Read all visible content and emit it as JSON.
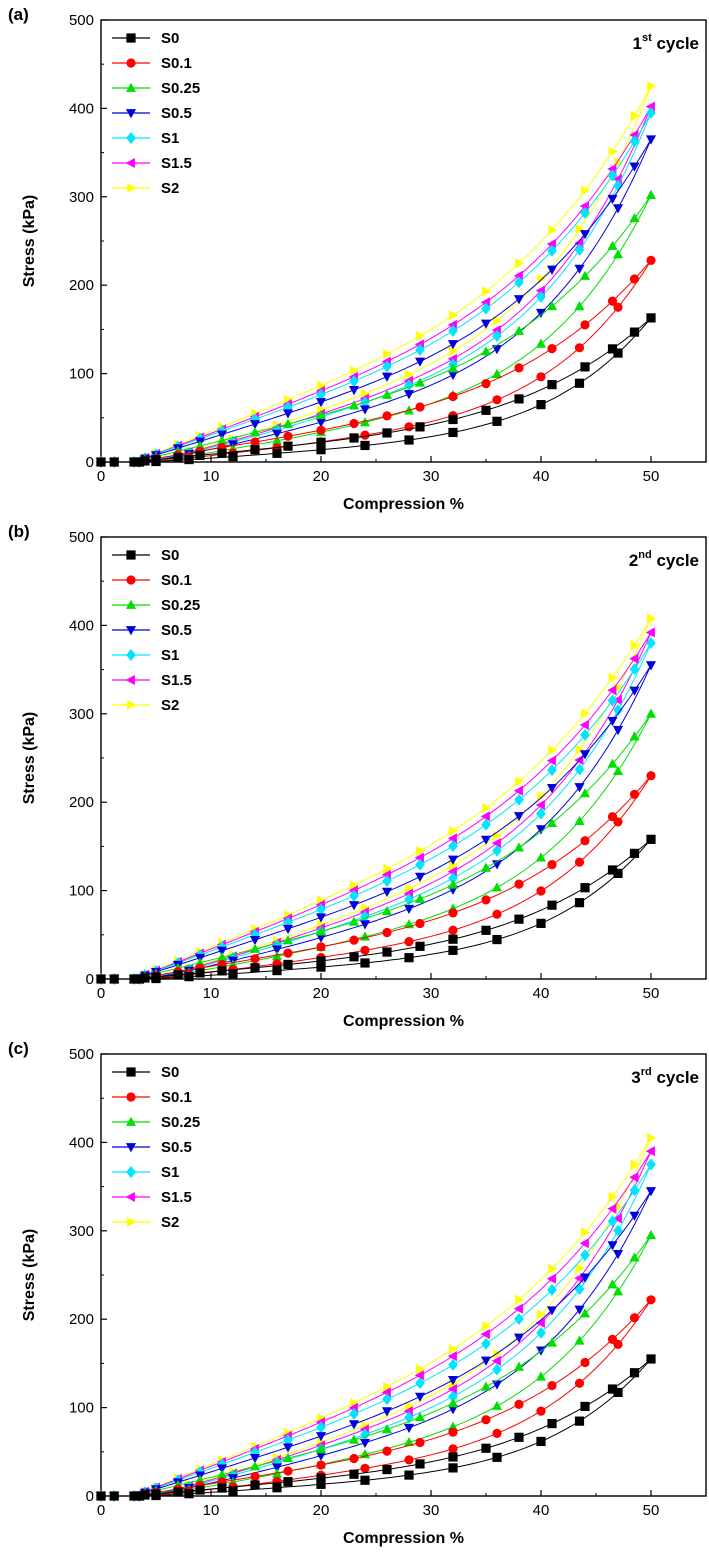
{
  "colors": {
    "S0": "#000000",
    "S0.1": "#ff0000",
    "S0.25": "#00e000",
    "S0.5": "#0000dd",
    "S1": "#00e5ff",
    "S1.5": "#ff00ff",
    "S2": "#ffff00"
  },
  "markers": {
    "S0": "square",
    "S0.1": "circle",
    "S0.25": "triangle-up",
    "S0.5": "triangle-down",
    "S1": "diamond",
    "S1.5": "triangle-left",
    "S2": "triangle-right"
  },
  "chart_data": [
    {
      "type": "scatter",
      "panel_label": "(a)",
      "cycle_label": {
        "ordinal": "1",
        "suffix": "st",
        "word": " cycle"
      },
      "xlabel": "Compression %",
      "ylabel": "Stress (kPa)",
      "xlim": [
        0,
        55
      ],
      "ylim": [
        0,
        500
      ],
      "xticks": [
        "0",
        "10",
        "20",
        "30",
        "40",
        "50"
      ],
      "yticks": [
        "0",
        "100",
        "200",
        "300",
        "400",
        "500"
      ],
      "legend": "top-left",
      "series": [
        {
          "name": "S0",
          "final": 163,
          "load_mid": 0.36,
          "unload_mid": 0.28
        },
        {
          "name": "S0.1",
          "final": 228,
          "load_mid": 0.42,
          "unload_mid": 0.33
        },
        {
          "name": "S0.25",
          "final": 302,
          "load_mid": 0.47,
          "unload_mid": 0.37
        },
        {
          "name": "S0.5",
          "final": 365,
          "load_mid": 0.5,
          "unload_mid": 0.41
        },
        {
          "name": "S1",
          "final": 395,
          "load_mid": 0.52,
          "unload_mid": 0.43
        },
        {
          "name": "S1.5",
          "final": 402,
          "load_mid": 0.54,
          "unload_mid": 0.45
        },
        {
          "name": "S2",
          "final": 425,
          "load_mid": 0.55,
          "unload_mid": 0.46
        }
      ]
    },
    {
      "type": "scatter",
      "panel_label": "(b)",
      "cycle_label": {
        "ordinal": "2",
        "suffix": "nd",
        "word": " cycle"
      },
      "xlabel": "Compression %",
      "ylabel": "Stress (kPa)",
      "xlim": [
        0,
        55
      ],
      "ylim": [
        0,
        500
      ],
      "xticks": [
        "0",
        "10",
        "20",
        "30",
        "40",
        "50"
      ],
      "yticks": [
        "0",
        "100",
        "200",
        "300",
        "400",
        "500"
      ],
      "legend": "top-left",
      "series": [
        {
          "name": "S0",
          "final": 158,
          "load_mid": 0.34,
          "unload_mid": 0.28
        },
        {
          "name": "S0.1",
          "final": 230,
          "load_mid": 0.42,
          "unload_mid": 0.35
        },
        {
          "name": "S0.25",
          "final": 300,
          "load_mid": 0.48,
          "unload_mid": 0.4
        },
        {
          "name": "S0.5",
          "final": 355,
          "load_mid": 0.53,
          "unload_mid": 0.44
        },
        {
          "name": "S1",
          "final": 380,
          "load_mid": 0.56,
          "unload_mid": 0.47
        },
        {
          "name": "S1.5",
          "final": 392,
          "load_mid": 0.58,
          "unload_mid": 0.49
        },
        {
          "name": "S2",
          "final": 408,
          "load_mid": 0.59,
          "unload_mid": 0.5
        }
      ]
    },
    {
      "type": "scatter",
      "panel_label": "(c)",
      "cycle_label": {
        "ordinal": "3",
        "suffix": "rd",
        "word": " cycle"
      },
      "xlabel": "Compression %",
      "ylabel": "Stress (kPa)",
      "xlim": [
        0,
        55
      ],
      "ylim": [
        0,
        500
      ],
      "xticks": [
        "0",
        "10",
        "20",
        "30",
        "40",
        "50"
      ],
      "yticks": [
        "0",
        "100",
        "200",
        "300",
        "400",
        "500"
      ],
      "legend": "top-left",
      "series": [
        {
          "name": "S0",
          "final": 155,
          "load_mid": 0.34,
          "unload_mid": 0.28
        },
        {
          "name": "S0.1",
          "final": 222,
          "load_mid": 0.42,
          "unload_mid": 0.35
        },
        {
          "name": "S0.25",
          "final": 295,
          "load_mid": 0.48,
          "unload_mid": 0.4
        },
        {
          "name": "S0.5",
          "final": 345,
          "load_mid": 0.53,
          "unload_mid": 0.44
        },
        {
          "name": "S1",
          "final": 375,
          "load_mid": 0.56,
          "unload_mid": 0.47
        },
        {
          "name": "S1.5",
          "final": 390,
          "load_mid": 0.58,
          "unload_mid": 0.49
        },
        {
          "name": "S2",
          "final": 405,
          "load_mid": 0.59,
          "unload_mid": 0.5
        }
      ]
    }
  ]
}
